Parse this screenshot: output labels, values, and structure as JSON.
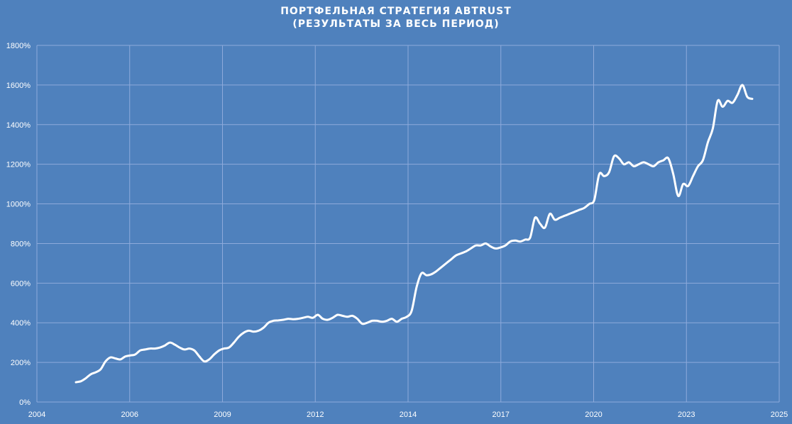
{
  "chart_data": {
    "type": "line",
    "title": "ПОРТФЕЛЬНАЯ СТРАТЕГИЯ ABTRUST",
    "subtitle": "(РЕЗУЛЬТАТЫ ЗА ВЕСЬ ПЕРИОД)",
    "xlabel": "",
    "ylabel": "",
    "x_ticks": [
      "2004",
      "2006",
      "2009",
      "2012",
      "2014",
      "2017",
      "2020",
      "2023",
      "2025"
    ],
    "y_ticks": [
      "0%",
      "200%",
      "400%",
      "600%",
      "800%",
      "1000%",
      "1200%",
      "1400%",
      "1600%",
      "1800%"
    ],
    "ylim": [
      0,
      1800
    ],
    "grid": true,
    "colors": {
      "background": "#4f81bd",
      "line": "#ffffff",
      "grid": "#8eaadb"
    },
    "series": [
      {
        "values": [
          100,
          105,
          120,
          140,
          150,
          165,
          205,
          225,
          220,
          215,
          230,
          235,
          240,
          260,
          265,
          270,
          270,
          275,
          285,
          300,
          290,
          275,
          265,
          270,
          260,
          230,
          205,
          215,
          240,
          260,
          270,
          275,
          300,
          330,
          350,
          360,
          355,
          360,
          375,
          400,
          410,
          412,
          415,
          420,
          418,
          420,
          425,
          430,
          425,
          440,
          420,
          415,
          425,
          440,
          435,
          430,
          435,
          420,
          395,
          400,
          410,
          410,
          405,
          410,
          420,
          405,
          420,
          430,
          460,
          580,
          650,
          640,
          645,
          660,
          680,
          700,
          720,
          740,
          750,
          760,
          775,
          790,
          790,
          800,
          785,
          775,
          780,
          790,
          810,
          815,
          810,
          820,
          830,
          930,
          900,
          880,
          950,
          920,
          930,
          940,
          950,
          960,
          970,
          980,
          1000,
          1020,
          1150,
          1140,
          1160,
          1240,
          1230,
          1200,
          1210,
          1190,
          1200,
          1210,
          1200,
          1190,
          1210,
          1220,
          1230,
          1150,
          1040,
          1100,
          1090,
          1140,
          1190,
          1220,
          1310,
          1380,
          1520,
          1490,
          1520,
          1510,
          1550,
          1600,
          1540,
          1530
        ]
      }
    ]
  }
}
